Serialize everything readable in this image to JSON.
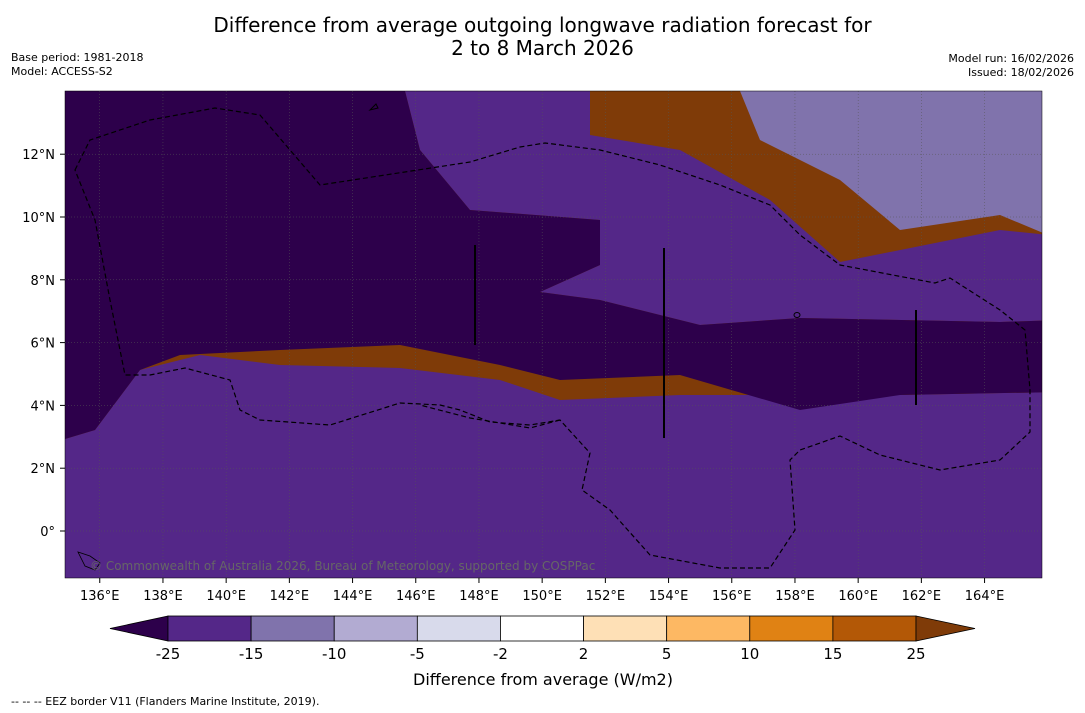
{
  "title": {
    "line1": "Difference from average outgoing longwave radiation forecast for",
    "line2": "2 to 8 March 2026"
  },
  "meta": {
    "base_period": "Base period: 1981-2018",
    "model": "Model: ACCESS-S2",
    "model_run": "Model run: 16/02/2026",
    "issued": "Issued: 18/02/2026"
  },
  "map": {
    "lat_ticks": [
      "12°N",
      "10°N",
      "8°N",
      "6°N",
      "4°N",
      "2°N",
      "0°"
    ],
    "lon_ticks": [
      "136°E",
      "138°E",
      "140°E",
      "142°E",
      "144°E",
      "146°E",
      "148°E",
      "150°E",
      "152°E",
      "154°E",
      "156°E",
      "158°E",
      "160°E",
      "162°E",
      "164°E"
    ],
    "copyright": "© Commonwealth of Australia 2026, Bureau of Meteorology, supported by COSPPac"
  },
  "legend": {
    "ticks": [
      "-25",
      "-15",
      "-10",
      "-5",
      "-2",
      "2",
      "5",
      "10",
      "15",
      "25"
    ],
    "colors": [
      "#2d004b",
      "#542788",
      "#8073ac",
      "#b2abd2",
      "#d8daeb",
      "#ffffff",
      "#fee0b6",
      "#fdb863",
      "#e08214",
      "#b35806",
      "#7f3b08"
    ],
    "label": "Difference from average (W/m2)"
  },
  "footnote": "--  --  -- EEZ border V11 (Flanders Marine Institute, 2019)."
}
